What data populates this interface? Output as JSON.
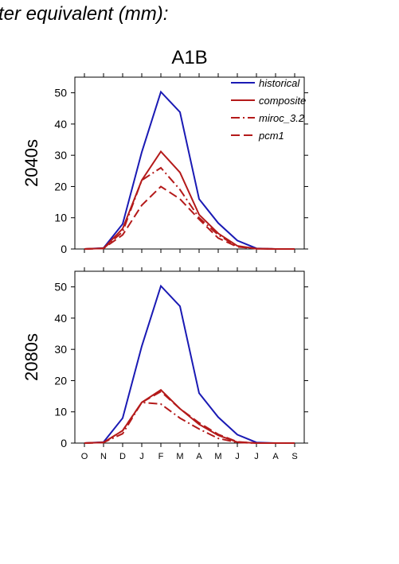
{
  "figure": {
    "title_fragment": "ter equivalent (mm):",
    "scenario": "A1B"
  },
  "colors": {
    "historical": "#1a1ab4",
    "composite": "#b41a1a",
    "miroc": "#b41a1a",
    "pcm1": "#b41a1a"
  },
  "chart_data": [
    {
      "type": "line",
      "row_label": "2040s",
      "categories": [
        "O",
        "N",
        "D",
        "J",
        "F",
        "M",
        "A",
        "M",
        "J",
        "J",
        "A",
        "S"
      ],
      "ylim": [
        0,
        55
      ],
      "yticks": [
        0,
        10,
        20,
        30,
        40,
        50
      ],
      "legend": [
        "historical",
        "composite",
        "miroc_3.2",
        "pcm1"
      ],
      "legend_position": "top-right",
      "series": [
        {
          "name": "historical",
          "style": "solid",
          "values": [
            0,
            0.3,
            8,
            31,
            50.3,
            43.8,
            16,
            8.3,
            2.7,
            0.2,
            0,
            0
          ]
        },
        {
          "name": "composite",
          "style": "solid",
          "values": [
            0,
            0.2,
            6.5,
            22,
            31.2,
            24.5,
            11,
            5,
            1,
            0.1,
            0,
            0
          ]
        },
        {
          "name": "miroc_3.2",
          "style": "dashdot",
          "values": [
            0,
            0.2,
            5.5,
            22,
            26,
            19,
            10,
            4.5,
            0.8,
            0.1,
            0,
            0
          ]
        },
        {
          "name": "pcm1",
          "style": "dash",
          "values": [
            0,
            0.2,
            4.5,
            14,
            20,
            16,
            9.5,
            3.5,
            0.7,
            0.1,
            0,
            0
          ]
        }
      ]
    },
    {
      "type": "line",
      "row_label": "2080s",
      "categories": [
        "O",
        "N",
        "D",
        "J",
        "F",
        "M",
        "A",
        "M",
        "J",
        "J",
        "A",
        "S"
      ],
      "ylim": [
        0,
        55
      ],
      "yticks": [
        0,
        10,
        20,
        30,
        40,
        50
      ],
      "series": [
        {
          "name": "historical",
          "style": "solid",
          "values": [
            0,
            0.3,
            8,
            31,
            50.3,
            43.8,
            16,
            8.3,
            2.7,
            0.2,
            0,
            0
          ]
        },
        {
          "name": "composite",
          "style": "solid",
          "values": [
            0,
            0.2,
            4,
            13,
            17,
            11,
            6,
            2.5,
            0.3,
            0,
            0,
            0
          ]
        },
        {
          "name": "miroc_3.2",
          "style": "dashdot",
          "values": [
            0,
            0.2,
            3,
            13,
            12.5,
            8,
            4.5,
            1.5,
            0.2,
            0,
            0,
            0
          ]
        },
        {
          "name": "pcm1",
          "style": "dash",
          "values": [
            0,
            0.2,
            4,
            13,
            16.5,
            11,
            6.5,
            2.8,
            0.4,
            0,
            0,
            0
          ]
        }
      ]
    }
  ]
}
